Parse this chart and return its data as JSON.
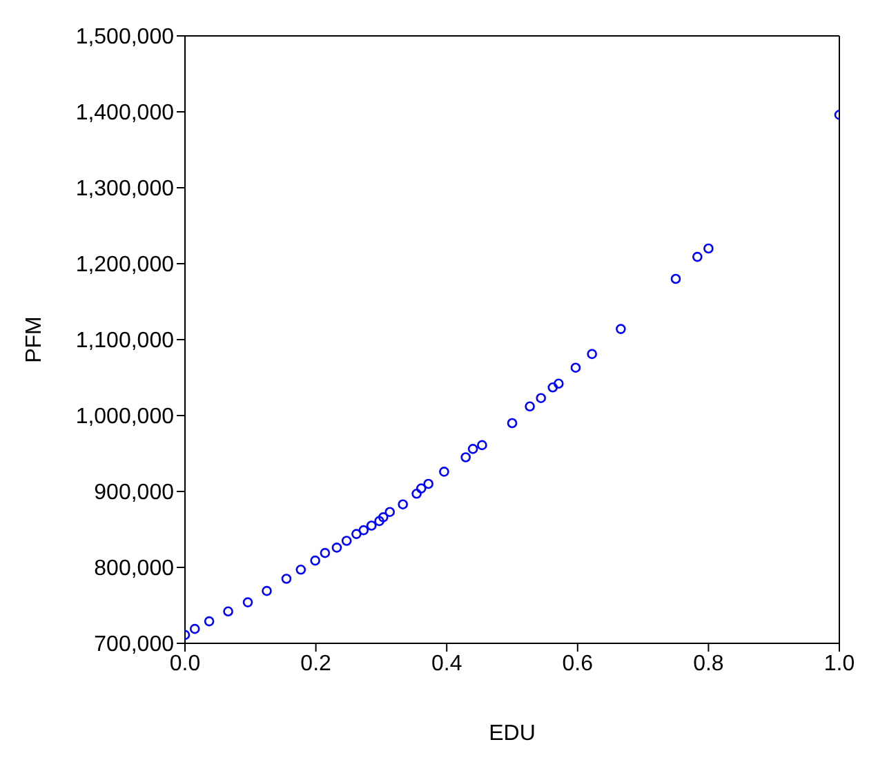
{
  "chart_data": {
    "type": "scatter",
    "xlabel": "EDU",
    "ylabel": "PFM",
    "x": [
      0.0,
      0.015,
      0.037,
      0.066,
      0.096,
      0.125,
      0.155,
      0.177,
      0.199,
      0.214,
      0.232,
      0.247,
      0.262,
      0.273,
      0.285,
      0.297,
      0.303,
      0.313,
      0.333,
      0.354,
      0.361,
      0.372,
      0.396,
      0.429,
      0.44,
      0.454,
      0.5,
      0.527,
      0.544,
      0.562,
      0.571,
      0.597,
      0.622,
      0.666,
      0.75,
      0.783,
      0.8,
      1.0
    ],
    "series": [
      {
        "color": "#0000ff",
        "values": [
          711000,
          719000,
          729000,
          742000,
          754000,
          769000,
          785000,
          797000,
          809000,
          819000,
          826000,
          835000,
          844000,
          849000,
          855000,
          861000,
          866000,
          873000,
          883000,
          897000,
          904000,
          910000,
          926000,
          945000,
          956000,
          961000,
          990000,
          1012000,
          1023000,
          1037000,
          1042000,
          1063000,
          1081000,
          1114000,
          1180000,
          1209000,
          1220000,
          1396000
        ]
      }
    ],
    "xlim": [
      0,
      1
    ],
    "xticks": [
      {
        "value": 0,
        "label": "0.0"
      },
      {
        "value": 0.2,
        "label": "0.2"
      },
      {
        "value": 0.4,
        "label": "0.4"
      },
      {
        "value": 0.6,
        "label": "0.6"
      },
      {
        "value": 0.8,
        "label": "0.8"
      },
      {
        "value": 1,
        "label": "1.0"
      }
    ],
    "ylim": [
      700000,
      1500000
    ],
    "yticks": [
      {
        "value": 700000,
        "label": "700,000"
      },
      {
        "value": 800000,
        "label": "800,000"
      },
      {
        "value": 900000,
        "label": "900,000"
      },
      {
        "value": 1000000,
        "label": "1,000,000"
      },
      {
        "value": 1100000,
        "label": "1,100,000"
      },
      {
        "value": 1200000,
        "label": "1,200,000"
      },
      {
        "value": 1300000,
        "label": "1,300,000"
      },
      {
        "value": 1400000,
        "label": "1,400,000"
      },
      {
        "value": 1500000,
        "label": "1,500,000"
      }
    ],
    "legend": false,
    "marker": "circle"
  }
}
